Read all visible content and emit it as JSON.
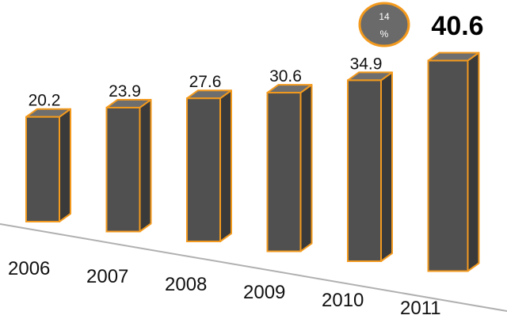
{
  "chart_data": {
    "type": "bar",
    "categories": [
      "2006",
      "2007",
      "2008",
      "2009",
      "2010",
      "2011"
    ],
    "values": [
      20.2,
      23.9,
      27.6,
      30.6,
      34.9,
      40.6
    ],
    "value_labels": [
      "20.2",
      "23.9",
      "27.6",
      "30.6",
      "34.9",
      "40.6"
    ],
    "title": "",
    "xlabel": "",
    "ylabel": "",
    "grid": false,
    "legend": "none",
    "style": "3d-columns",
    "colors": {
      "front": "#505050",
      "side": "#3a3a3a",
      "top": "#6e6e6e",
      "outline": "#f39a1e",
      "badge": "#6a6a6a",
      "axis": "#b0b0b0"
    }
  },
  "annotation": {
    "badge_number": "14",
    "badge_unit": "%"
  }
}
